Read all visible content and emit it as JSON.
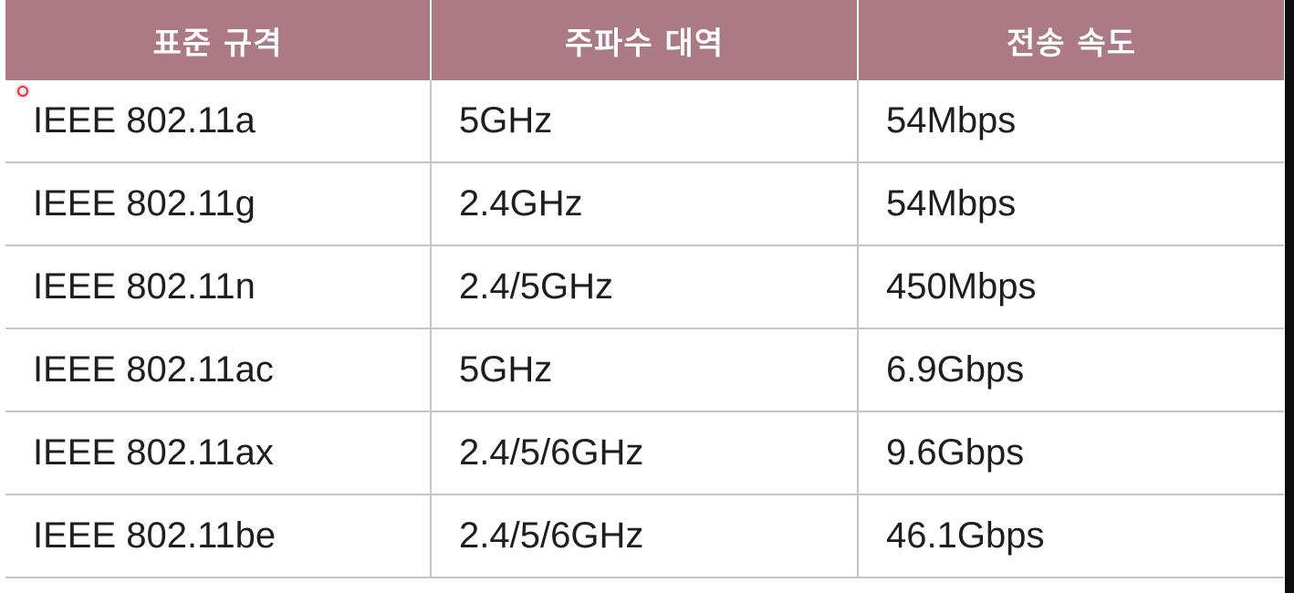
{
  "table": {
    "headers": [
      "표준 규격",
      "주파수 대역",
      "전송 속도"
    ],
    "rows": [
      [
        "IEEE 802.11a",
        "5GHz",
        "54Mbps"
      ],
      [
        "IEEE 802.11g",
        "2.4GHz",
        "54Mbps"
      ],
      [
        "IEEE 802.11n",
        "2.4/5GHz",
        "450Mbps"
      ],
      [
        "IEEE 802.11ac",
        "5GHz",
        "6.9Gbps"
      ],
      [
        "IEEE 802.11ax",
        "2.4/5/6GHz",
        "9.6Gbps"
      ],
      [
        "IEEE 802.11be",
        "2.4/5/6GHz",
        "46.1Gbps"
      ]
    ]
  },
  "colors": {
    "header_bg": "#ab7a84",
    "header_text": "#ffffff",
    "cell_text": "#1e1e1e",
    "grid_line": "#c4c4c4",
    "cursor_marker": "#e2343a"
  },
  "icons": {
    "cursor": "cursor-marker-icon"
  }
}
